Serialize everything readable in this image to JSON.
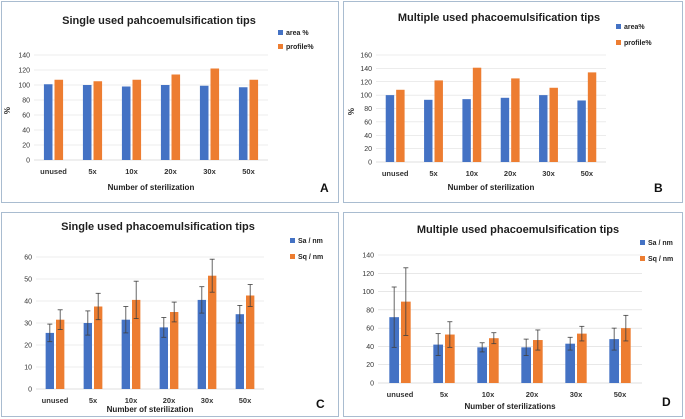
{
  "colors": {
    "series1": "#4472c4",
    "series2": "#ed7d31",
    "grid": "#d9d9d9",
    "errorbar": "#404040"
  },
  "chart_data": [
    {
      "type": "bar",
      "panel": "A",
      "title": "Single used pahcoemulsification tips",
      "xlabel": "Number of sterilization",
      "ylabel": "%",
      "ylim": [
        0,
        140
      ],
      "yticks": [
        0,
        20,
        40,
        60,
        80,
        100,
        120,
        140
      ],
      "categories": [
        "unused",
        "5x",
        "10x",
        "20x",
        "30x",
        "50x"
      ],
      "series": [
        {
          "name": "area %",
          "values": [
            101,
            100,
            98,
            100,
            99,
            97
          ]
        },
        {
          "name": "profile%",
          "values": [
            107,
            105,
            107,
            114,
            122,
            107
          ]
        }
      ]
    },
    {
      "type": "bar",
      "panel": "B",
      "title": "Multiple used phacoemulsification tips",
      "xlabel": "Number of sterilization",
      "ylabel": "%",
      "ylim": [
        0,
        160
      ],
      "yticks": [
        0,
        20,
        40,
        60,
        80,
        100,
        120,
        140,
        160
      ],
      "categories": [
        "unused",
        "5x",
        "10x",
        "20x",
        "30x",
        "50x"
      ],
      "series": [
        {
          "name": "area%",
          "values": [
            100,
            93,
            94,
            96,
            100,
            92
          ]
        },
        {
          "name": "profile%",
          "values": [
            108,
            122,
            141,
            125,
            111,
            134
          ]
        }
      ]
    },
    {
      "type": "bar",
      "panel": "C",
      "title": "Single used phacoemulsification tips",
      "xlabel": "Number of sterilization",
      "ylabel": "",
      "ylim": [
        0,
        60
      ],
      "yticks": [
        0,
        10,
        20,
        30,
        40,
        50,
        60
      ],
      "categories": [
        "unused",
        "5x",
        "10x",
        "20x",
        "30x",
        "50x"
      ],
      "series": [
        {
          "name": "Sa / nm",
          "values": [
            25.5,
            30,
            31.5,
            28,
            40.5,
            34
          ],
          "errors": [
            4,
            5.5,
            6,
            4.5,
            6,
            4
          ]
        },
        {
          "name": "Sq / nm",
          "values": [
            31.5,
            37.5,
            40.5,
            35,
            51.5,
            42.5
          ],
          "errors": [
            4.5,
            6,
            8.5,
            4.5,
            7.5,
            5
          ]
        }
      ]
    },
    {
      "type": "bar",
      "panel": "D",
      "title": "Multiple used phacoemulsification tips",
      "xlabel": "Number of sterilizations",
      "ylabel": "",
      "ylim": [
        0,
        140
      ],
      "yticks": [
        0,
        20,
        40,
        60,
        80,
        100,
        120,
        140
      ],
      "categories": [
        "unused",
        "5x",
        "10x",
        "20x",
        "30x",
        "50x"
      ],
      "series": [
        {
          "name": "Sa / nm",
          "values": [
            72,
            42,
            39,
            39,
            43,
            48
          ],
          "errors": [
            33,
            12,
            5,
            9,
            7,
            12
          ]
        },
        {
          "name": "Sq / nm",
          "values": [
            89,
            53,
            49,
            47,
            54,
            60
          ],
          "errors": [
            37,
            14,
            6,
            11,
            8,
            14
          ]
        }
      ]
    }
  ]
}
